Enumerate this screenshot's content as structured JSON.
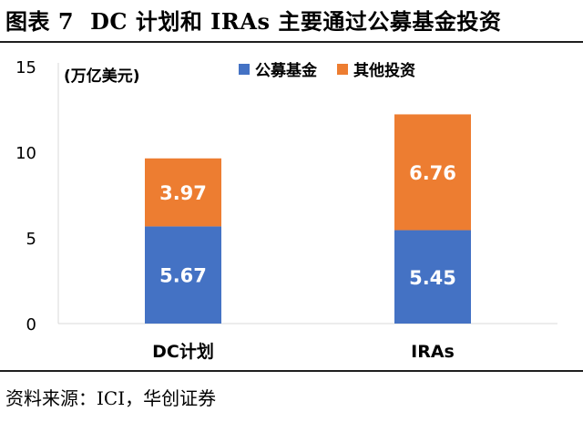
{
  "figure": {
    "number": "图表 7",
    "title": "DC 计划和 IRAs 主要通过公募基金投资"
  },
  "source": "资料来源：ICI，华创证券",
  "colors": {
    "public_funds": "#4472C4",
    "other": "#ED7D31",
    "label_text": "#ffffff"
  },
  "chart_data": {
    "type": "bar",
    "stacked": true,
    "title": "",
    "unit_label": "(万亿美元)",
    "categories": [
      "DC计划",
      "IRAs"
    ],
    "series": [
      {
        "name": "公募基金",
        "values": [
          5.67,
          5.45
        ]
      },
      {
        "name": "其他投资",
        "values": [
          3.97,
          6.76
        ]
      }
    ],
    "y_ticks": [
      "0",
      "5",
      "10",
      "15"
    ],
    "ylim": [
      0,
      15
    ],
    "grid": false,
    "legend_position": "top"
  }
}
